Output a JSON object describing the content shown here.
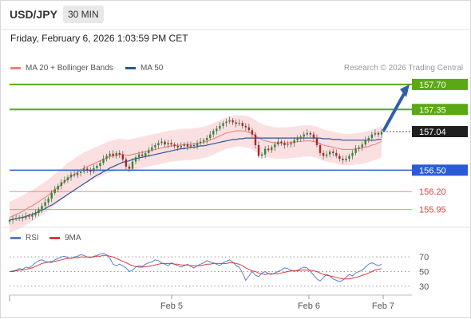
{
  "header": {
    "pair": "USD/JPY",
    "timeframe": "30 MIN"
  },
  "datetime": "Friday, February 6, 2026 1:03:59 PM CET",
  "legend": {
    "ma20_label": "MA 20 + Bollinger Bands",
    "ma50_label": "MA 50",
    "rsi_label": "RSI",
    "rsi_ma_label": "9MA"
  },
  "credit": "Research © 2026 Trading Central",
  "colors": {
    "ma20": "#f08080",
    "ma50": "#2a5599",
    "bands": "#fadadd",
    "green": "#5aa814",
    "blue": "#2a5bd7",
    "red": "#e03a3a",
    "bull": "#2e8b2e",
    "bear": "#b22222"
  },
  "chart_data": [
    {
      "type": "candlestick",
      "price_ylim": [
        155.7,
        157.9
      ],
      "x_ticks": [
        "Feb 5",
        "Feb 6",
        "Feb 7"
      ],
      "levels": [
        {
          "label": "157.70",
          "value": 157.7,
          "kind": "target"
        },
        {
          "label": "157.35",
          "value": 157.35,
          "kind": "resistance"
        },
        {
          "label": "157.04",
          "value": 157.04,
          "kind": "last"
        },
        {
          "label": "156.50",
          "value": 156.5,
          "kind": "pivot"
        },
        {
          "label": "156.20",
          "value": 156.2,
          "kind": "support"
        },
        {
          "label": "155.95",
          "value": 155.95,
          "kind": "support"
        }
      ],
      "forecast_arrow": {
        "from": 157.04,
        "to": 157.7
      },
      "close": [
        155.8,
        155.82,
        155.83,
        155.84,
        155.83,
        155.86,
        155.85,
        155.87,
        155.9,
        155.95,
        156.0,
        156.05,
        156.1,
        156.18,
        156.23,
        156.28,
        156.33,
        156.36,
        156.4,
        156.44,
        156.43,
        156.46,
        156.48,
        156.52,
        156.5,
        156.48,
        156.53,
        156.56,
        156.6,
        156.66,
        156.7,
        156.73,
        156.7,
        156.74,
        156.72,
        156.65,
        156.55,
        156.52,
        156.62,
        156.68,
        156.72,
        156.7,
        156.74,
        156.78,
        156.82,
        156.85,
        156.88,
        156.9,
        156.86,
        156.88,
        156.86,
        156.84,
        156.82,
        156.84,
        156.86,
        156.83,
        156.85,
        156.84,
        156.88,
        156.9,
        156.92,
        156.95,
        157.0,
        157.05,
        157.08,
        157.12,
        157.16,
        157.18,
        157.2,
        157.17,
        157.15,
        157.16,
        157.12,
        157.1,
        157.06,
        157.0,
        156.85,
        156.7,
        156.72,
        156.8,
        156.78,
        156.82,
        156.86,
        156.9,
        156.88,
        156.85,
        156.86,
        156.88,
        156.92,
        156.94,
        156.97,
        157.0,
        157.02,
        157.0,
        156.95,
        156.85,
        156.74,
        156.7,
        156.72,
        156.76,
        156.74,
        156.7,
        156.66,
        156.64,
        156.66,
        156.7,
        156.74,
        156.8,
        156.82,
        156.86,
        156.92,
        156.95,
        157.0,
        157.02,
        157.0,
        157.04
      ],
      "ma20": [
        155.84,
        155.86,
        155.88,
        155.9,
        155.92,
        155.95,
        155.98,
        156.0,
        156.03,
        156.06,
        156.09,
        156.12,
        156.15,
        156.19,
        156.23,
        156.26,
        156.3,
        156.34,
        156.38,
        156.41,
        156.44,
        156.47,
        156.5,
        156.53,
        156.55,
        156.57,
        156.59,
        156.61,
        156.63,
        156.65,
        156.67,
        156.69,
        156.7,
        156.71,
        156.72,
        156.72,
        156.71,
        156.71,
        156.72,
        156.73,
        156.74,
        156.75,
        156.76,
        156.77,
        156.78,
        156.79,
        156.8,
        156.81,
        156.82,
        156.83,
        156.84,
        156.84,
        156.85,
        156.85,
        156.86,
        156.86,
        156.86,
        156.87,
        156.87,
        156.88,
        156.89,
        156.9,
        156.92,
        156.94,
        156.96,
        156.98,
        157.0,
        157.02,
        157.03,
        157.04,
        157.05,
        157.05,
        157.05,
        157.04,
        157.03,
        157.01,
        156.98,
        156.95,
        156.93,
        156.91,
        156.9,
        156.89,
        156.88,
        156.88,
        156.88,
        156.88,
        156.88,
        156.89,
        156.89,
        156.9,
        156.9,
        156.91,
        156.91,
        156.91,
        156.9,
        156.89,
        156.87,
        156.85,
        156.84,
        156.83,
        156.82,
        156.81,
        156.8,
        156.79,
        156.79,
        156.79,
        156.79,
        156.8,
        156.8,
        156.81,
        156.82,
        156.83,
        156.85,
        156.86,
        156.88,
        156.9
      ],
      "band_width": 0.22,
      "ma50": [
        155.8,
        155.81,
        155.82,
        155.83,
        155.84,
        155.85,
        155.87,
        155.88,
        155.9,
        155.92,
        155.94,
        155.96,
        155.99,
        156.01,
        156.04,
        156.07,
        156.1,
        156.13,
        156.16,
        156.19,
        156.22,
        156.25,
        156.28,
        156.31,
        156.34,
        156.37,
        156.4,
        156.43,
        156.45,
        156.48,
        156.5,
        156.53,
        156.55,
        156.57,
        156.59,
        156.61,
        156.62,
        156.63,
        156.65,
        156.66,
        156.67,
        156.68,
        156.69,
        156.7,
        156.71,
        156.72,
        156.73,
        156.74,
        156.75,
        156.76,
        156.77,
        156.78,
        156.79,
        156.8,
        156.8,
        156.81,
        156.82,
        156.82,
        156.83,
        156.84,
        156.84,
        156.85,
        156.86,
        156.87,
        156.88,
        156.89,
        156.9,
        156.91,
        156.92,
        156.93,
        156.93,
        156.94,
        156.94,
        156.95,
        156.95,
        156.95,
        156.95,
        156.95,
        156.95,
        156.95,
        156.95,
        156.95,
        156.95,
        156.95,
        156.95,
        156.95,
        156.95,
        156.95,
        156.95,
        156.95,
        156.95,
        156.95,
        156.95,
        156.95,
        156.95,
        156.95,
        156.95,
        156.94,
        156.94,
        156.94,
        156.93,
        156.93,
        156.93,
        156.92,
        156.92,
        156.92,
        156.92,
        156.92,
        156.92,
        156.92,
        156.92,
        156.92,
        156.92,
        156.92,
        156.93,
        156.93
      ]
    },
    {
      "type": "line",
      "name": "RSI",
      "ylim": [
        20,
        80
      ],
      "y_ticks": [
        70,
        50,
        30
      ],
      "rsi": [
        50,
        51,
        52,
        54,
        53,
        56,
        55,
        58,
        62,
        65,
        66,
        64,
        63,
        62,
        66,
        68,
        70,
        71,
        69,
        68,
        70,
        71,
        73,
        72,
        70,
        69,
        71,
        72,
        74,
        75,
        73,
        68,
        60,
        58,
        60,
        58,
        55,
        50,
        52,
        56,
        58,
        57,
        60,
        62,
        63,
        66,
        65,
        62,
        60,
        58,
        62,
        60,
        58,
        56,
        58,
        60,
        57,
        55,
        58,
        60,
        62,
        65,
        63,
        62,
        60,
        58,
        62,
        64,
        66,
        63,
        58,
        56,
        48,
        38,
        44,
        50,
        45,
        43,
        48,
        50,
        47,
        46,
        48,
        50,
        52,
        55,
        54,
        52,
        50,
        52,
        54,
        56,
        55,
        50,
        45,
        40,
        37,
        42,
        46,
        44,
        40,
        38,
        36,
        38,
        42,
        46,
        44,
        48,
        50,
        52,
        56,
        60,
        62,
        60,
        58,
        60
      ],
      "rsi_ma": [
        50,
        50,
        51,
        52,
        52,
        53,
        54,
        55,
        57,
        59,
        61,
        62,
        63,
        64,
        64,
        65,
        66,
        67,
        68,
        68,
        69,
        69,
        70,
        70,
        70,
        70,
        70,
        71,
        71,
        72,
        72,
        71,
        70,
        68,
        66,
        64,
        62,
        60,
        58,
        57,
        56,
        56,
        57,
        57,
        58,
        59,
        60,
        61,
        61,
        61,
        61,
        60,
        60,
        59,
        59,
        59,
        58,
        58,
        58,
        58,
        59,
        60,
        60,
        61,
        61,
        61,
        61,
        61,
        62,
        62,
        61,
        60,
        58,
        55,
        53,
        51,
        50,
        48,
        47,
        46,
        47,
        47,
        47,
        47,
        48,
        49,
        50,
        51,
        51,
        51,
        52,
        52,
        52,
        52,
        51,
        50,
        48,
        46,
        45,
        44,
        43,
        42,
        41,
        40,
        40,
        40,
        41,
        42,
        43,
        45,
        46,
        48,
        50,
        52,
        53,
        54
      ]
    }
  ]
}
